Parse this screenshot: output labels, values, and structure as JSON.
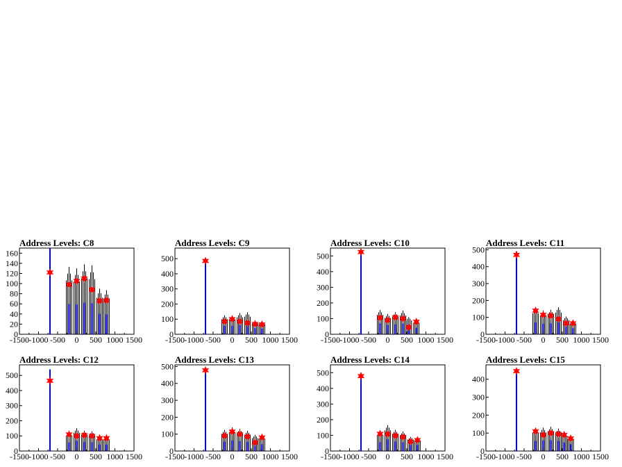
{
  "chart_data": [
    {
      "type": "line",
      "title": "Address Levels: C8",
      "xlim": [
        -1500,
        1500
      ],
      "ylim": [
        0,
        170
      ],
      "x_ticks": [
        -1500,
        -1000,
        -500,
        0,
        500,
        1000,
        1500
      ],
      "x_tick_labels": [
        "-1500",
        "-1000",
        "-500",
        "0",
        "500",
        "1000",
        "1500"
      ],
      "y_ticks": [
        0,
        20,
        40,
        60,
        80,
        100,
        120,
        140,
        160
      ],
      "y_tick_labels": [
        "0",
        "20",
        "40",
        "60",
        "80",
        "100",
        "120",
        "140",
        "160"
      ],
      "peaks": [
        {
          "x": -700,
          "y": 122
        },
        {
          "x": -200,
          "y": 98
        },
        {
          "x": 0,
          "y": 105
        },
        {
          "x": 200,
          "y": 110
        },
        {
          "x": 400,
          "y": 88
        },
        {
          "x": 600,
          "y": 66
        },
        {
          "x": 780,
          "y": 67
        }
      ],
      "spikes": [
        {
          "x": -700,
          "height": 170,
          "color": "#0000ff"
        },
        {
          "x": -200,
          "height": 133,
          "color": "#000000"
        },
        {
          "x": 0,
          "height": 130,
          "color": "#000000"
        },
        {
          "x": 200,
          "height": 138,
          "color": "#000000"
        },
        {
          "x": 400,
          "height": 136,
          "color": "#000000"
        },
        {
          "x": 600,
          "height": 90,
          "color": "#000000"
        },
        {
          "x": 780,
          "height": 87,
          "color": "#000000"
        }
      ]
    },
    {
      "type": "line",
      "title": "Address Levels: C9",
      "xlim": [
        -1500,
        1500
      ],
      "ylim": [
        0,
        570
      ],
      "x_ticks": [
        -1500,
        -1000,
        -500,
        0,
        500,
        1000,
        1500
      ],
      "x_tick_labels": [
        "-1500",
        "-1000",
        "-500",
        "0",
        "500",
        "1000",
        "1500"
      ],
      "y_ticks": [
        0,
        100,
        200,
        300,
        400,
        500
      ],
      "y_tick_labels": [
        "0",
        "100",
        "200",
        "300",
        "400",
        "500"
      ],
      "peaks": [
        {
          "x": -700,
          "y": 485
        },
        {
          "x": -200,
          "y": 85
        },
        {
          "x": 0,
          "y": 100
        },
        {
          "x": 200,
          "y": 85
        },
        {
          "x": 400,
          "y": 75
        },
        {
          "x": 600,
          "y": 68
        },
        {
          "x": 780,
          "y": 65
        }
      ],
      "spikes": [
        {
          "x": -700,
          "height": 500,
          "color": "#0000ff"
        },
        {
          "x": -200,
          "height": 125,
          "color": "#000000"
        },
        {
          "x": 0,
          "height": 125,
          "color": "#000000"
        },
        {
          "x": 200,
          "height": 140,
          "color": "#000000"
        },
        {
          "x": 400,
          "height": 145,
          "color": "#000000"
        },
        {
          "x": 600,
          "height": 90,
          "color": "#000000"
        },
        {
          "x": 780,
          "height": 85,
          "color": "#000000"
        }
      ]
    },
    {
      "type": "line",
      "title": "Address Levels: C10",
      "xlim": [
        -1500,
        1500
      ],
      "ylim": [
        0,
        550
      ],
      "x_ticks": [
        -1500,
        -1000,
        -500,
        0,
        500,
        1000,
        1500
      ],
      "x_tick_labels": [
        "-1500",
        "-1000",
        "-500",
        "0",
        "500",
        "1000",
        "1500"
      ],
      "y_ticks": [
        0,
        100,
        200,
        300,
        400,
        500
      ],
      "y_tick_labels": [
        "0",
        "100",
        "200",
        "300",
        "400",
        "500"
      ],
      "peaks": [
        {
          "x": -700,
          "y": 525
        },
        {
          "x": -200,
          "y": 105
        },
        {
          "x": 0,
          "y": 90
        },
        {
          "x": 200,
          "y": 108
        },
        {
          "x": 400,
          "y": 100
        },
        {
          "x": 550,
          "y": 45
        },
        {
          "x": 750,
          "y": 80
        }
      ],
      "spikes": [
        {
          "x": -700,
          "height": 540,
          "color": "#0000ff"
        },
        {
          "x": -200,
          "height": 155,
          "color": "#000000"
        },
        {
          "x": 0,
          "height": 130,
          "color": "#000000"
        },
        {
          "x": 200,
          "height": 140,
          "color": "#000000"
        },
        {
          "x": 400,
          "height": 150,
          "color": "#000000"
        },
        {
          "x": 550,
          "height": 110,
          "color": "#000000"
        },
        {
          "x": 750,
          "height": 90,
          "color": "#000000"
        }
      ]
    },
    {
      "type": "line",
      "title": "Address Levels: C11",
      "xlim": [
        -1500,
        1500
      ],
      "ylim": [
        0,
        510
      ],
      "x_ticks": [
        -1500,
        -1000,
        -500,
        0,
        500,
        1000,
        1500
      ],
      "x_tick_labels": [
        "-1500",
        "-1000",
        "-500",
        "0",
        "500",
        "1000",
        "1500"
      ],
      "y_ticks": [
        0,
        100,
        200,
        300,
        400,
        500
      ],
      "y_tick_labels": [
        "0",
        "100",
        "200",
        "300",
        "400",
        "500"
      ],
      "peaks": [
        {
          "x": -700,
          "y": 470
        },
        {
          "x": -200,
          "y": 140
        },
        {
          "x": 0,
          "y": 115
        },
        {
          "x": 200,
          "y": 110
        },
        {
          "x": 400,
          "y": 90
        },
        {
          "x": 600,
          "y": 65
        },
        {
          "x": 780,
          "y": 65
        }
      ],
      "spikes": [
        {
          "x": -700,
          "height": 490,
          "color": "#0000ff"
        },
        {
          "x": -200,
          "height": 155,
          "color": "#000000"
        },
        {
          "x": 0,
          "height": 140,
          "color": "#000000"
        },
        {
          "x": 200,
          "height": 145,
          "color": "#000000"
        },
        {
          "x": 400,
          "height": 160,
          "color": "#000000"
        },
        {
          "x": 600,
          "height": 105,
          "color": "#000000"
        },
        {
          "x": 780,
          "height": 80,
          "color": "#000000"
        }
      ]
    },
    {
      "type": "line",
      "title": "Address Levels: C12",
      "xlim": [
        -1500,
        1500
      ],
      "ylim": [
        0,
        570
      ],
      "x_ticks": [
        -1500,
        -1000,
        -500,
        0,
        500,
        1000,
        1500
      ],
      "x_tick_labels": [
        "-1500",
        "-1000",
        "-500",
        "0",
        "500",
        "1000",
        "1500"
      ],
      "y_ticks": [
        0,
        100,
        200,
        300,
        400,
        500
      ],
      "y_tick_labels": [
        "0",
        "100",
        "200",
        "300",
        "400",
        "500"
      ],
      "peaks": [
        {
          "x": -700,
          "y": 465
        },
        {
          "x": -200,
          "y": 110
        },
        {
          "x": 0,
          "y": 100
        },
        {
          "x": 200,
          "y": 105
        },
        {
          "x": 400,
          "y": 100
        },
        {
          "x": 600,
          "y": 85
        },
        {
          "x": 780,
          "y": 85
        }
      ],
      "spikes": [
        {
          "x": -700,
          "height": 540,
          "color": "#0000ff"
        },
        {
          "x": -200,
          "height": 125,
          "color": "#000000"
        },
        {
          "x": 0,
          "height": 150,
          "color": "#000000"
        },
        {
          "x": 200,
          "height": 135,
          "color": "#000000"
        },
        {
          "x": 400,
          "height": 130,
          "color": "#000000"
        },
        {
          "x": 600,
          "height": 95,
          "color": "#000000"
        },
        {
          "x": 780,
          "height": 95,
          "color": "#000000"
        }
      ]
    },
    {
      "type": "line",
      "title": "Address Levels: C13",
      "xlim": [
        -1500,
        1500
      ],
      "ylim": [
        0,
        510
      ],
      "x_ticks": [
        -1500,
        -1000,
        -500,
        0,
        500,
        1000,
        1500
      ],
      "x_tick_labels": [
        "-1500",
        "-1000",
        "-500",
        "0",
        "500",
        "1000",
        "1500"
      ],
      "y_ticks": [
        0,
        100,
        200,
        300,
        400,
        500
      ],
      "y_tick_labels": [
        "0",
        "100",
        "200",
        "300",
        "400",
        "500"
      ],
      "peaks": [
        {
          "x": -700,
          "y": 478
        },
        {
          "x": -200,
          "y": 90
        },
        {
          "x": 0,
          "y": 115
        },
        {
          "x": 200,
          "y": 100
        },
        {
          "x": 400,
          "y": 85
        },
        {
          "x": 600,
          "y": 50
        },
        {
          "x": 780,
          "y": 80
        }
      ],
      "spikes": [
        {
          "x": -700,
          "height": 490,
          "color": "#0000ff"
        },
        {
          "x": -200,
          "height": 125,
          "color": "#000000"
        },
        {
          "x": 0,
          "height": 140,
          "color": "#000000"
        },
        {
          "x": 200,
          "height": 130,
          "color": "#000000"
        },
        {
          "x": 400,
          "height": 120,
          "color": "#000000"
        },
        {
          "x": 600,
          "height": 95,
          "color": "#000000"
        },
        {
          "x": 780,
          "height": 90,
          "color": "#000000"
        }
      ]
    },
    {
      "type": "line",
      "title": "Address Levels: C14",
      "xlim": [
        -1500,
        1500
      ],
      "ylim": [
        0,
        550
      ],
      "x_ticks": [
        -1500,
        -1000,
        -500,
        0,
        500,
        1000,
        1500
      ],
      "x_tick_labels": [
        "-1500",
        "-1000",
        "-500",
        "0",
        "500",
        "1000",
        "1500"
      ],
      "y_ticks": [
        0,
        100,
        200,
        300,
        400,
        500
      ],
      "y_tick_labels": [
        "0",
        "100",
        "200",
        "300",
        "400",
        "500"
      ],
      "peaks": [
        {
          "x": -700,
          "y": 478
        },
        {
          "x": -200,
          "y": 110
        },
        {
          "x": 0,
          "y": 108
        },
        {
          "x": 200,
          "y": 98
        },
        {
          "x": 400,
          "y": 90
        },
        {
          "x": 600,
          "y": 60
        },
        {
          "x": 780,
          "y": 70
        }
      ],
      "spikes": [
        {
          "x": -700,
          "height": 500,
          "color": "#0000ff"
        },
        {
          "x": -200,
          "height": 125,
          "color": "#000000"
        },
        {
          "x": 0,
          "height": 165,
          "color": "#000000"
        },
        {
          "x": 200,
          "height": 135,
          "color": "#000000"
        },
        {
          "x": 400,
          "height": 125,
          "color": "#000000"
        },
        {
          "x": 600,
          "height": 90,
          "color": "#000000"
        },
        {
          "x": 780,
          "height": 85,
          "color": "#000000"
        }
      ]
    },
    {
      "type": "line",
      "title": "Address Levels: C15",
      "xlim": [
        -1500,
        1500
      ],
      "ylim": [
        0,
        480
      ],
      "x_ticks": [
        -1500,
        -1000,
        -500,
        0,
        500,
        1000,
        1500
      ],
      "x_tick_labels": [
        "-1500",
        "-1000",
        "-500",
        "0",
        "500",
        "1000",
        "1500"
      ],
      "y_ticks": [
        0,
        100,
        200,
        300,
        400
      ],
      "y_tick_labels": [
        "0",
        "100",
        "200",
        "300",
        "400"
      ],
      "peaks": [
        {
          "x": -700,
          "y": 445
        },
        {
          "x": -200,
          "y": 110
        },
        {
          "x": 0,
          "y": 90
        },
        {
          "x": 200,
          "y": 100
        },
        {
          "x": 400,
          "y": 95
        },
        {
          "x": 550,
          "y": 90
        },
        {
          "x": 720,
          "y": 70
        }
      ],
      "spikes": [
        {
          "x": -700,
          "height": 450,
          "color": "#0000ff"
        },
        {
          "x": -200,
          "height": 125,
          "color": "#000000"
        },
        {
          "x": 0,
          "height": 130,
          "color": "#000000"
        },
        {
          "x": 200,
          "height": 135,
          "color": "#000000"
        },
        {
          "x": 400,
          "height": 125,
          "color": "#000000"
        },
        {
          "x": 550,
          "height": 105,
          "color": "#000000"
        },
        {
          "x": 720,
          "height": 85,
          "color": "#000000"
        }
      ]
    }
  ],
  "colors": {
    "signal": "#0000ff",
    "raw": "#000000",
    "marker": "#ff0000",
    "axis": "#000000"
  }
}
